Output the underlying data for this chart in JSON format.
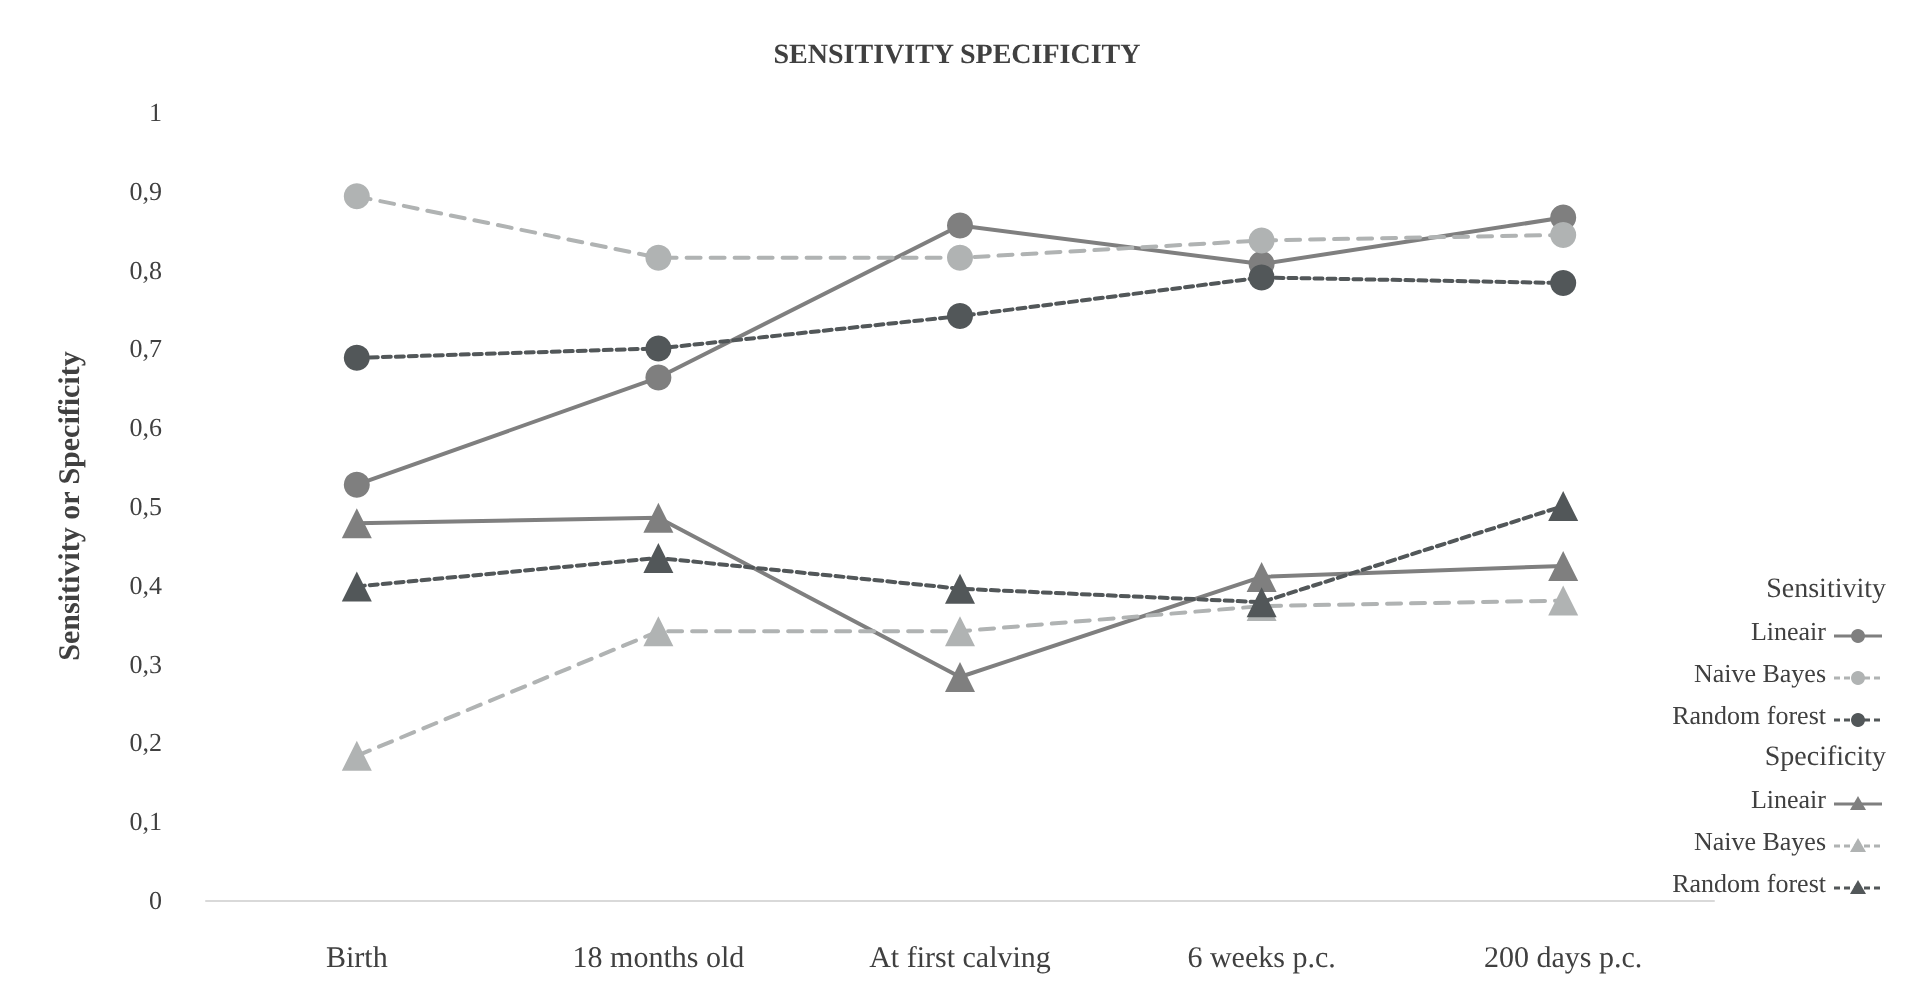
{
  "chart_data": {
    "type": "line",
    "title": "SENSITIVITY SPECIFICITY",
    "ylabel": "Sensitivity or Specificity",
    "categories": [
      "Birth",
      "18 months old",
      "At first calving",
      "6 weeks p.c.",
      "200 days p.c."
    ],
    "ylim": [
      0,
      1
    ],
    "yticks": [
      0,
      {
        "value": 0.1,
        "label": "0,1"
      },
      {
        "value": 0.2,
        "label": "0,2"
      },
      {
        "value": 0.3,
        "label": "0,3"
      },
      {
        "value": 0.4,
        "label": "0,4"
      },
      {
        "value": 0.5,
        "label": "0,5"
      },
      {
        "value": 0.6,
        "label": "0,6"
      },
      {
        "value": 0.7,
        "label": "0,7"
      },
      {
        "value": 0.8,
        "label": "0,8"
      },
      {
        "value": 0.9,
        "label": "0,9"
      },
      1
    ],
    "grid": false,
    "legend": "right",
    "annotations": [
      "Sensitivity",
      "Specificity"
    ],
    "series": [
      {
        "name": "Lineair",
        "color": "#7f7f7f",
        "marker": "circle",
        "line_style": "solid",
        "values": [
          0.527,
          0.663,
          0.856,
          0.807,
          0.866
        ]
      },
      {
        "name": "Naive Bayes",
        "color": "#b0b3b3",
        "marker": "circle",
        "line_style": "dashed",
        "values": [
          0.893,
          0.815,
          0.815,
          0.837,
          0.844
        ]
      },
      {
        "name": "Random forest",
        "color": "#525759",
        "marker": "circle",
        "line_style": "dotted",
        "values": [
          0.688,
          0.7,
          0.741,
          0.79,
          0.783
        ]
      },
      {
        "name": "Lineair",
        "color": "#7f7f7f",
        "marker": "triangle",
        "line_style": "solid",
        "values": [
          0.478,
          0.485,
          0.283,
          0.41,
          0.424
        ]
      },
      {
        "name": "Naive Bayes",
        "color": "#b0b3b3",
        "marker": "triangle",
        "line_style": "dashed",
        "values": [
          0.183,
          0.341,
          0.341,
          0.373,
          0.38
        ]
      },
      {
        "name": "Random forest",
        "color": "#525759",
        "marker": "triangle",
        "line_style": "dotted",
        "values": [
          0.398,
          0.434,
          0.395,
          0.378,
          0.5
        ]
      }
    ]
  }
}
